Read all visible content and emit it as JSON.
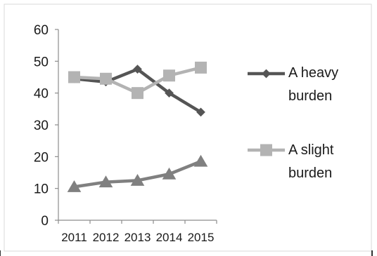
{
  "chart_data": {
    "type": "line",
    "title": "",
    "xlabel": "",
    "ylabel": "",
    "x": [
      "2011",
      "2012",
      "2013",
      "2014",
      "2015"
    ],
    "ylim": [
      0,
      60
    ],
    "yticks": [
      "0",
      "10",
      "20",
      "30",
      "40",
      "50",
      "60"
    ],
    "grid": false,
    "legend_position": "right",
    "series": [
      {
        "name_line1": "A heavy",
        "name_line2": "burden",
        "marker": "diamond",
        "color": "#555555",
        "values": [
          44.5,
          43.5,
          47.5,
          40,
          34
        ]
      },
      {
        "name_line1": "A slight",
        "name_line2": "burden",
        "marker": "square",
        "color": "#b3b3b3",
        "values": [
          45,
          44.5,
          40,
          45.5,
          48
        ]
      },
      {
        "marker": "triangle",
        "color": "#808080",
        "values": [
          10.5,
          12,
          12.5,
          14.5,
          18.5
        ]
      }
    ]
  }
}
